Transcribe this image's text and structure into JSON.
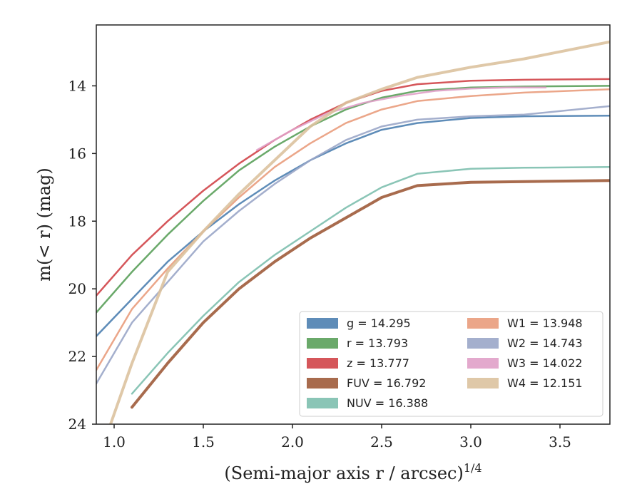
{
  "chart_data": {
    "type": "line",
    "title": "",
    "xlabel": "(Semi-major axis r / arcsec)",
    "xlabel_exponent": "1/4",
    "ylabel": "m(< r) (mag)",
    "xlim": [
      0.9,
      3.78
    ],
    "ylim": [
      24,
      12.2
    ],
    "y_inverted": true,
    "grid": false,
    "legend_position": "lower-right",
    "x_ticks": [
      "1.0",
      "1.5",
      "2.0",
      "2.5",
      "3.0",
      "3.5"
    ],
    "y_ticks": [
      "14",
      "16",
      "18",
      "20",
      "22",
      "24"
    ],
    "series": [
      {
        "key": "g",
        "name": "g = 14.295",
        "color": "#4c7fb0",
        "total": 14.295,
        "x": [
          0.9,
          1.1,
          1.3,
          1.5,
          1.7,
          1.9,
          2.1,
          2.3,
          2.5,
          2.7,
          3.0,
          3.3,
          3.78
        ],
        "y": [
          21.4,
          20.3,
          19.2,
          18.3,
          17.5,
          16.8,
          16.2,
          15.7,
          15.3,
          15.1,
          14.95,
          14.9,
          14.88
        ]
      },
      {
        "key": "r",
        "name": "r = 13.793",
        "color": "#5aa05a",
        "total": 13.793,
        "x": [
          0.9,
          1.1,
          1.3,
          1.5,
          1.7,
          1.9,
          2.1,
          2.3,
          2.5,
          2.7,
          3.0,
          3.3,
          3.78
        ],
        "y": [
          20.7,
          19.5,
          18.4,
          17.4,
          16.5,
          15.8,
          15.2,
          14.7,
          14.35,
          14.15,
          14.05,
          14.02,
          14.0
        ]
      },
      {
        "key": "z",
        "name": "z = 13.777",
        "color": "#d04448",
        "total": 13.777,
        "x": [
          0.9,
          1.1,
          1.3,
          1.5,
          1.7,
          1.9,
          2.1,
          2.3,
          2.5,
          2.7,
          3.0,
          3.3,
          3.78
        ],
        "y": [
          20.2,
          19.0,
          18.0,
          17.1,
          16.3,
          15.6,
          15.0,
          14.5,
          14.15,
          13.95,
          13.85,
          13.82,
          13.8
        ]
      },
      {
        "key": "FUV",
        "name": "FUV = 16.792",
        "color": "#9e5b3a",
        "total": 16.792,
        "x": [
          1.1,
          1.3,
          1.5,
          1.7,
          1.9,
          2.1,
          2.3,
          2.5,
          2.7,
          3.0,
          3.3,
          3.78
        ],
        "y": [
          23.5,
          22.2,
          21.0,
          20.0,
          19.2,
          18.5,
          17.9,
          17.3,
          16.95,
          16.85,
          16.83,
          16.8
        ]
      },
      {
        "key": "NUV",
        "name": "NUV = 16.388",
        "color": "#7dbfae",
        "total": 16.388,
        "x": [
          1.1,
          1.3,
          1.5,
          1.7,
          1.9,
          2.1,
          2.3,
          2.5,
          2.7,
          3.0,
          3.3,
          3.78
        ],
        "y": [
          23.1,
          21.9,
          20.8,
          19.8,
          19.0,
          18.3,
          17.6,
          17.0,
          16.6,
          16.45,
          16.42,
          16.4
        ]
      },
      {
        "key": "W1",
        "name": "W1 = 13.948",
        "color": "#e99c7c",
        "total": 13.948,
        "x": [
          0.9,
          1.1,
          1.3,
          1.5,
          1.7,
          1.9,
          2.1,
          2.3,
          2.5,
          2.7,
          3.0,
          3.3,
          3.78
        ],
        "y": [
          22.4,
          20.6,
          19.4,
          18.3,
          17.3,
          16.4,
          15.7,
          15.1,
          14.7,
          14.45,
          14.3,
          14.2,
          14.1
        ]
      },
      {
        "key": "W2",
        "name": "W2 = 14.743",
        "color": "#9aa6c8",
        "total": 14.743,
        "x": [
          0.9,
          1.1,
          1.3,
          1.5,
          1.7,
          1.9,
          2.1,
          2.3,
          2.5,
          2.7,
          3.0,
          3.3,
          3.78
        ],
        "y": [
          22.8,
          21.0,
          19.8,
          18.6,
          17.7,
          16.9,
          16.2,
          15.6,
          15.2,
          15.0,
          14.9,
          14.85,
          14.6
        ]
      },
      {
        "key": "W3",
        "name": "W3 = 14.022",
        "color": "#e0a0c8",
        "total": 14.022,
        "x": [
          1.8,
          2.0,
          2.2,
          2.4,
          2.6,
          2.8,
          3.0,
          3.2,
          3.42
        ],
        "y": [
          15.9,
          15.3,
          14.8,
          14.5,
          14.3,
          14.15,
          14.08,
          14.05,
          14.05
        ]
      },
      {
        "key": "W4",
        "name": "W4 = 12.151",
        "color": "#dcc29e",
        "total": 12.151,
        "x": [
          0.98,
          1.1,
          1.3,
          1.5,
          1.7,
          1.9,
          2.1,
          2.3,
          2.5,
          2.7,
          3.0,
          3.3,
          3.78
        ],
        "y": [
          24.0,
          22.2,
          19.5,
          18.3,
          17.2,
          16.2,
          15.2,
          14.5,
          14.1,
          13.75,
          13.45,
          13.2,
          12.7
        ]
      }
    ]
  }
}
